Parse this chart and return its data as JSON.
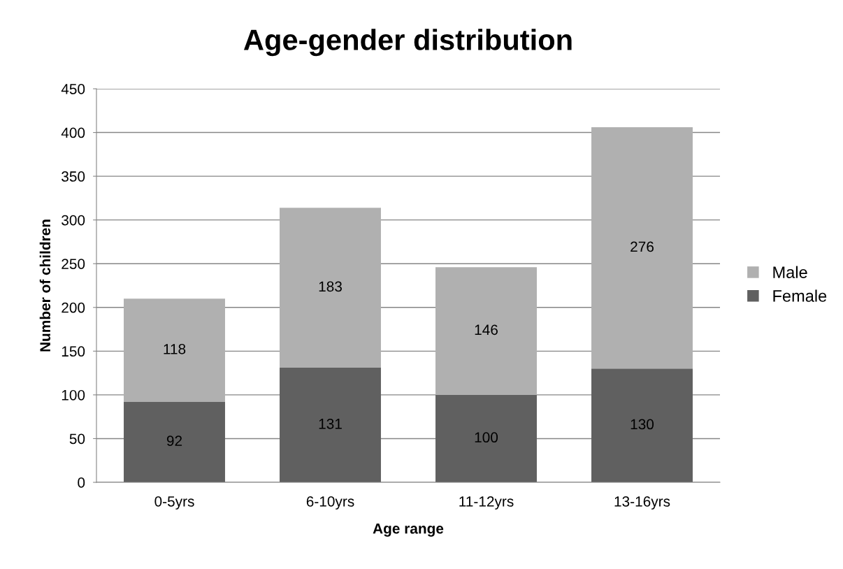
{
  "chart_data": {
    "type": "bar",
    "title": "Age-gender distribution",
    "xlabel": "Age range",
    "ylabel": "Number of children",
    "categories": [
      "0-5yrs",
      "6-10yrs",
      "11-12yrs",
      "13-16yrs"
    ],
    "series": [
      {
        "name": "Female",
        "color": "#606060",
        "values": [
          92,
          131,
          100,
          130
        ]
      },
      {
        "name": "Male",
        "color": "#b0b0b0",
        "values": [
          118,
          183,
          146,
          276
        ]
      }
    ],
    "stacked": true,
    "data_labels": true,
    "ylim": [
      0,
      450
    ],
    "yticks": [
      0,
      50,
      100,
      150,
      200,
      250,
      300,
      350,
      400,
      450
    ],
    "grid": "y",
    "legend": "right"
  }
}
